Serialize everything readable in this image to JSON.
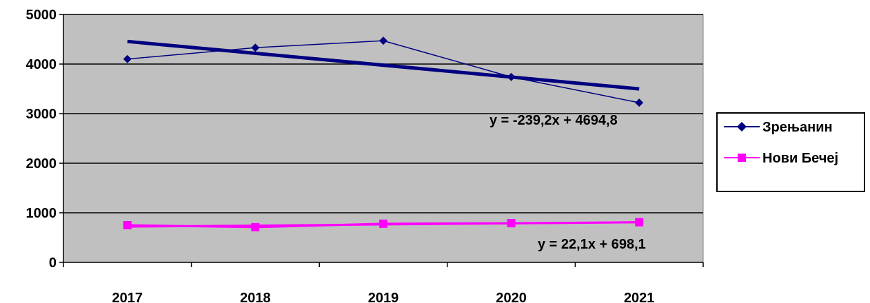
{
  "chart_data": {
    "type": "line",
    "title": "",
    "xlabel": "",
    "ylabel": "",
    "categories": [
      "2017",
      "2018",
      "2019",
      "2020",
      "2021"
    ],
    "ylim": [
      0,
      5000
    ],
    "yticks": [
      0,
      1000,
      2000,
      3000,
      4000,
      5000
    ],
    "grid": true,
    "legend_position": "right",
    "plot_background": "#C0C0C0",
    "series": [
      {
        "name": "Зрењанин",
        "values": [
          4100,
          4330,
          4470,
          3740,
          3220
        ],
        "color": "#000080",
        "marker": "diamond",
        "trendline": {
          "slope": -239.2,
          "intercept": 4694.8,
          "label": "y = -239,2x + 4694,8"
        }
      },
      {
        "name": "Нови Бечеј",
        "values": [
          750,
          710,
          780,
          790,
          810
        ],
        "color": "#FF00FF",
        "marker": "square",
        "trendline": {
          "slope": 22.1,
          "intercept": 698.1,
          "label": "y = 22,1x + 698,1"
        }
      }
    ]
  }
}
